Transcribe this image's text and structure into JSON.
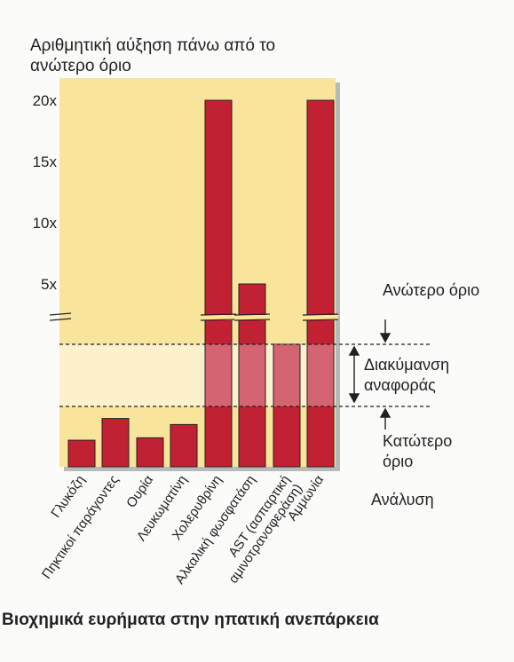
{
  "chart_data": {
    "type": "bar",
    "ylabel": "Αριθμητική αύξηση πάνω από το ανώτερο όριο",
    "xlabel": "Ανάλυση",
    "caption": "Βιοχημικά ευρήματα στην ηπατική ανεπάρκεια",
    "yticks": [
      "5x",
      "10x",
      "15x",
      "20x"
    ],
    "ylim_upper": [
      0,
      20
    ],
    "categories": [
      "Γλυκόζη",
      "Πηκτικοί παράγοντες",
      "Ουρία",
      "Λευκωματίνη",
      "Χολερυθρίνη",
      "Αλκαλική φωσφατάση",
      "AST (ασπαρτική αμινοτρανσφεράση)",
      "Αμμωνία"
    ],
    "bars": [
      {
        "level": "below_lower",
        "relative_height": 0.44
      },
      {
        "level": "below_lower",
        "relative_height": 0.8
      },
      {
        "level": "below_lower",
        "relative_height": 0.48
      },
      {
        "level": "below_lower",
        "relative_height": 0.7
      },
      {
        "level": "above_upper",
        "value": 20
      },
      {
        "level": "above_upper",
        "value": 5
      },
      {
        "level": "within_range",
        "relative_height": 1.0
      },
      {
        "level": "above_upper",
        "value": 20
      }
    ],
    "annotations": {
      "upper_limit": "Ανώτερο όριο",
      "reference_range": "Διακύμανση αναφοράς",
      "lower_limit": "Κατώτερο όριο"
    },
    "colors": {
      "bar": "#c22134",
      "background": "#f8e49a",
      "reference_band": "#fdf0cc"
    }
  }
}
